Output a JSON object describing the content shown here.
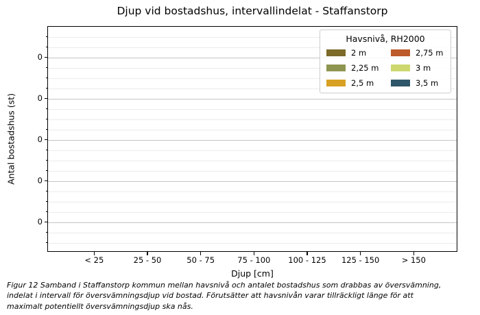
{
  "chart_data": {
    "type": "bar",
    "title": "Djup vid bostadshus, intervallindelat - Staffanstorp",
    "xlabel": "Djup [cm]",
    "ylabel": "Antal bostadshus (st)",
    "categories": [
      "< 25",
      "25 - 50",
      "50 - 75",
      "75 - 100",
      "100 - 125",
      "125 - 150",
      "> 150"
    ],
    "series": [
      {
        "name": "2 m",
        "color": "#7b6a28",
        "values": [
          0,
          0,
          0,
          0,
          0,
          0,
          0
        ]
      },
      {
        "name": "2,25 m",
        "color": "#8e9550",
        "values": [
          0,
          0,
          0,
          0,
          0,
          0,
          0
        ]
      },
      {
        "name": "2,5 m",
        "color": "#d8a123",
        "values": [
          0,
          0,
          0,
          0,
          0,
          0,
          0
        ]
      },
      {
        "name": "2,75 m",
        "color": "#bc5a2a",
        "values": [
          0,
          0,
          0,
          0,
          0,
          0,
          0
        ]
      },
      {
        "name": "3 m",
        "color": "#ccd86d",
        "values": [
          0,
          0,
          0,
          0,
          0,
          0,
          0
        ]
      },
      {
        "name": "3,5 m",
        "color": "#2e5668",
        "values": [
          0,
          0,
          0,
          0,
          0,
          0,
          0
        ]
      }
    ],
    "y_tick_labels": [
      "0",
      "0",
      "0",
      "0",
      "0"
    ],
    "legend_title": "Havsnivå, RH2000",
    "legend_position": "upper right",
    "grid": true
  },
  "caption": {
    "lines": [
      "Figur 12 Samband i Staffanstorp kommun mellan havsnivå och antalet bostadshus som drabbas av översvämning,",
      "indelat i intervall för översvämningsdjup vid bostad. Förutsätter att havsnivån varar tillräckligt länge för att",
      "maximalt potentiellt översvämningsdjup ska nås."
    ]
  }
}
